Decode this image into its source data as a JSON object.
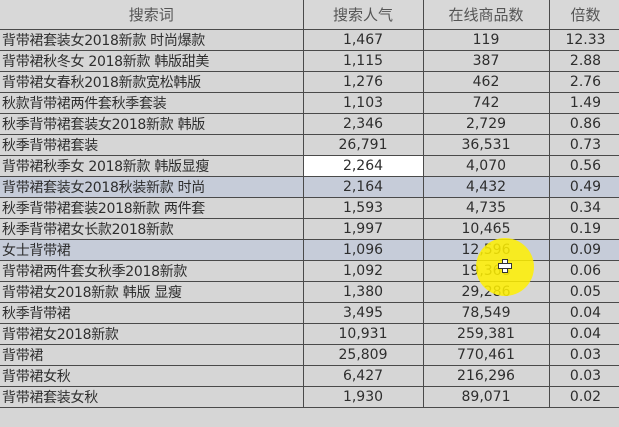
{
  "headers": [
    "搜索词",
    "搜索人气",
    "在线商品数",
    "倍数"
  ],
  "rows": [
    [
      "背带裙套装女2018新款 时尚爆款",
      "1,467",
      "119",
      "12.33"
    ],
    [
      "背带裙秋冬女 2018新款 韩版甜美",
      "1,115",
      "387",
      "2.88"
    ],
    [
      "背带裙女春秋2018新款宽松韩版",
      "1,276",
      "462",
      "2.76"
    ],
    [
      "秋款背带裙两件套秋季套装",
      "1,103",
      "742",
      "1.49"
    ],
    [
      "秋季背带裙套装女2018新款 韩版",
      "2,346",
      "2,729",
      "0.86"
    ],
    [
      "秋季背带裙套装",
      "26,791",
      "36,531",
      "0.73"
    ],
    [
      "背带裙秋季女 2018新款 韩版显瘦",
      "2,264",
      "4,070",
      "0.56"
    ],
    [
      "背带裙套装女2018秋装新款 时尚",
      "2,164",
      "4,432",
      "0.49"
    ],
    [
      "秋季背带裙套装2018新款 两件套",
      "1,593",
      "4,735",
      "0.34"
    ],
    [
      "秋季背带裙女长款2018新款",
      "1,997",
      "10,465",
      "0.19"
    ],
    [
      "女士背带裙",
      "1,096",
      "12,596",
      "0.09"
    ],
    [
      "背带裙两件套女秋季2018新款",
      "1,092",
      "19,368",
      "0.06"
    ],
    [
      "背带裙女2018新款 韩版 显瘦",
      "1,380",
      "29,286",
      "0.05"
    ],
    [
      "秋季背带裙",
      "3,495",
      "78,549",
      "0.04"
    ],
    [
      "背带裙女2018新款",
      "10,931",
      "259,381",
      "0.04"
    ],
    [
      "背带裙",
      "25,809",
      "770,461",
      "0.03"
    ],
    [
      "背带裙女秋",
      "6,427",
      "216,296",
      "0.03"
    ],
    [
      "背带裙套装女秋",
      "1,930",
      "89,071",
      "0.02"
    ]
  ],
  "selected_rows": [
    7,
    10
  ],
  "active_cell": {
    "row": 6,
    "col": 1
  },
  "colors": {
    "background": "#d6d6d6",
    "selected_row": "#c6ccd9",
    "cursor_highlight": "#fff000"
  }
}
